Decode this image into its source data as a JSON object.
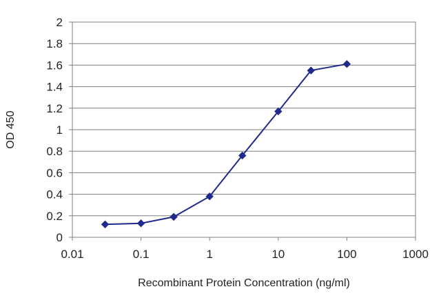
{
  "chart_data": {
    "type": "line",
    "title": "",
    "xlabel": "Recombinant Protein Concentration (ng/ml)",
    "ylabel": "OD 450",
    "x_scale": "log",
    "xlim": [
      0.01,
      1000
    ],
    "ylim": [
      0,
      2
    ],
    "x_ticks": [
      "0.01",
      "0.1",
      "1",
      "10",
      "100",
      "1000"
    ],
    "y_ticks": [
      "0",
      "0.2",
      "0.4",
      "0.6",
      "0.8",
      "1",
      "1.2",
      "1.4",
      "1.6",
      "1.8",
      "2"
    ],
    "grid": "horizontal",
    "legend": "none",
    "series": [
      {
        "color": "#1f2a8c",
        "marker": "diamond",
        "x": [
          0.03,
          0.1,
          0.3,
          1,
          3,
          10,
          30,
          100
        ],
        "y": [
          0.12,
          0.13,
          0.19,
          0.38,
          0.76,
          1.17,
          1.55,
          1.61
        ]
      }
    ]
  }
}
